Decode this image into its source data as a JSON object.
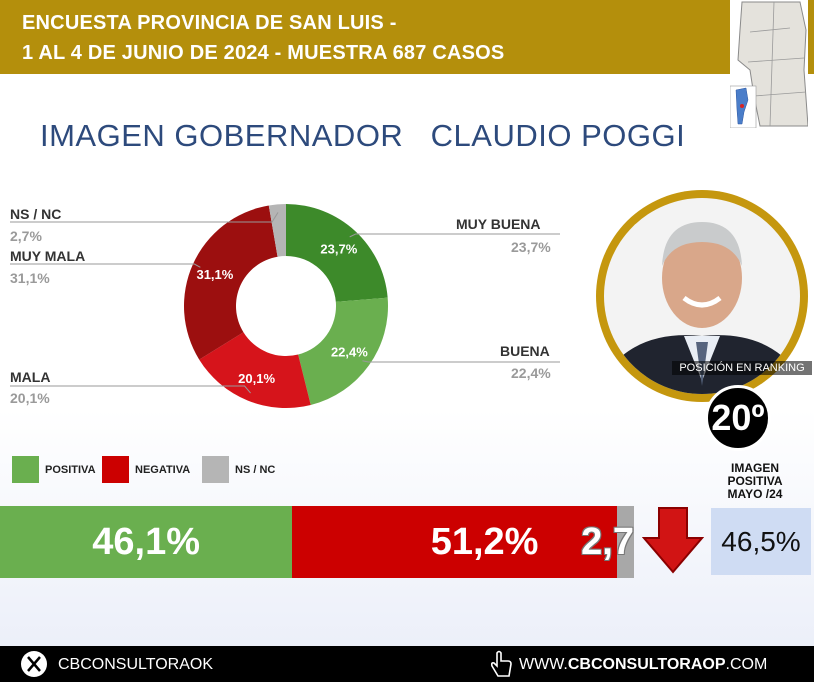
{
  "header": {
    "line1": "ENCUESTA PROVINCIA DE SAN LUIS -",
    "line2": "1 AL 4 DE JUNIO DE 2024 - MUESTRA 687 CASOS"
  },
  "title": "IMAGEN GOBERNADOR   CLAUDIO POGGI",
  "chart_data": [
    {
      "type": "pie",
      "donut": true,
      "slices": [
        {
          "label": "MUY BUENA",
          "value": 23.7,
          "text": "23,7%",
          "color": "#3d8a2a"
        },
        {
          "label": "BUENA",
          "value": 22.4,
          "text": "22,4%",
          "color": "#6aaf4f"
        },
        {
          "label": "MALA",
          "value": 20.1,
          "text": "20,1%",
          "color": "#d6141b"
        },
        {
          "label": "MUY MALA",
          "value": 31.1,
          "text": "31,1%",
          "color": "#9c0f0f"
        },
        {
          "label": "NS / NC",
          "value": 2.7,
          "text": "2,7%",
          "color": "#b5b5b5"
        }
      ]
    },
    {
      "type": "bar",
      "stacked": true,
      "orientation": "horizontal",
      "series": [
        {
          "name": "POSITIVA",
          "value": 46.1,
          "text": "46,1%",
          "color": "#6aaf4f"
        },
        {
          "name": "NEGATIVA",
          "value": 51.2,
          "text": "51,2%",
          "color": "#cc0000"
        },
        {
          "name": "NS / NC",
          "value": 2.7,
          "text": "2,7",
          "color": "#a8a8a8"
        }
      ]
    }
  ],
  "ranking": {
    "label": "POSICIÓN EN RANKING",
    "value": "20º"
  },
  "previous": {
    "label_lines": [
      "IMAGEN",
      "POSITIVA",
      "MAYO /24"
    ],
    "value": "46,5%"
  },
  "footer": {
    "social": "CBCONSULTORAOK",
    "website_prefix": "WWW.",
    "website_bold": "CBCONSULTORAOP",
    "website_suffix": ".COM"
  },
  "icons": [
    "x-logo-icon",
    "hand-pointer-icon",
    "down-arrow-icon",
    "argentina-map-icon",
    "person-photo"
  ]
}
